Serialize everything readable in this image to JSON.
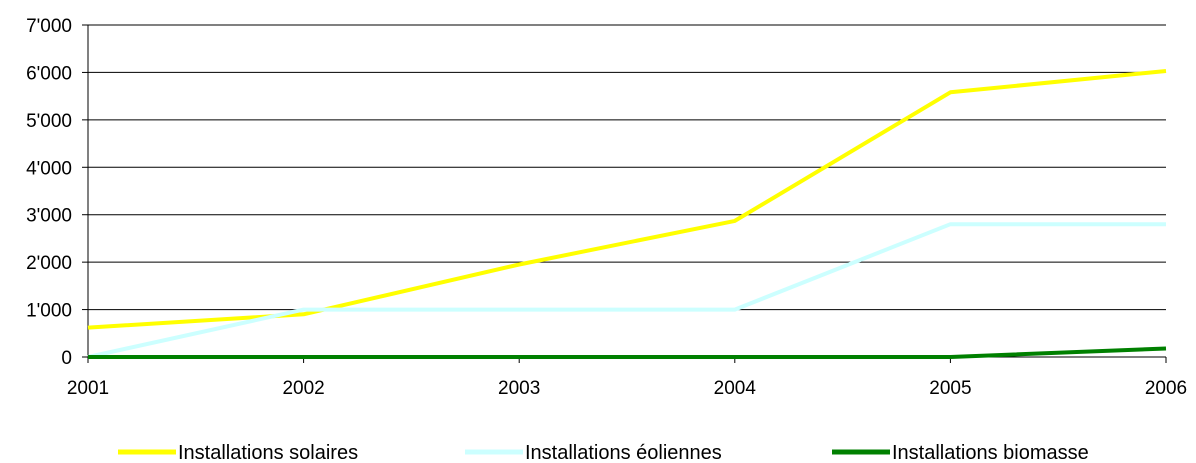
{
  "chart_data": {
    "type": "line",
    "x": [
      "2001",
      "2002",
      "2003",
      "2004",
      "2005",
      "2006"
    ],
    "ylim": [
      0,
      7000
    ],
    "yticks": [
      {
        "value": 0,
        "label": "0"
      },
      {
        "value": 1000,
        "label": "1'000"
      },
      {
        "value": 2000,
        "label": "2'000"
      },
      {
        "value": 3000,
        "label": "3'000"
      },
      {
        "value": 4000,
        "label": "4'000"
      },
      {
        "value": 5000,
        "label": "5'000"
      },
      {
        "value": 6000,
        "label": "6'000"
      },
      {
        "value": 7000,
        "label": "7'000"
      }
    ],
    "grid": true,
    "legend": "bottom",
    "series": [
      {
        "name": "Installations solaires",
        "color": "#FFFF00",
        "values": [
          620,
          900,
          1950,
          2870,
          5580,
          6030
        ]
      },
      {
        "name": "Installations éoliennes",
        "color": "#CCFFFF",
        "values": [
          0,
          1000,
          1000,
          1000,
          2800,
          2800
        ]
      },
      {
        "name": "Installations biomasse",
        "color": "#008000",
        "values": [
          0,
          0,
          0,
          0,
          0,
          180
        ]
      }
    ]
  }
}
